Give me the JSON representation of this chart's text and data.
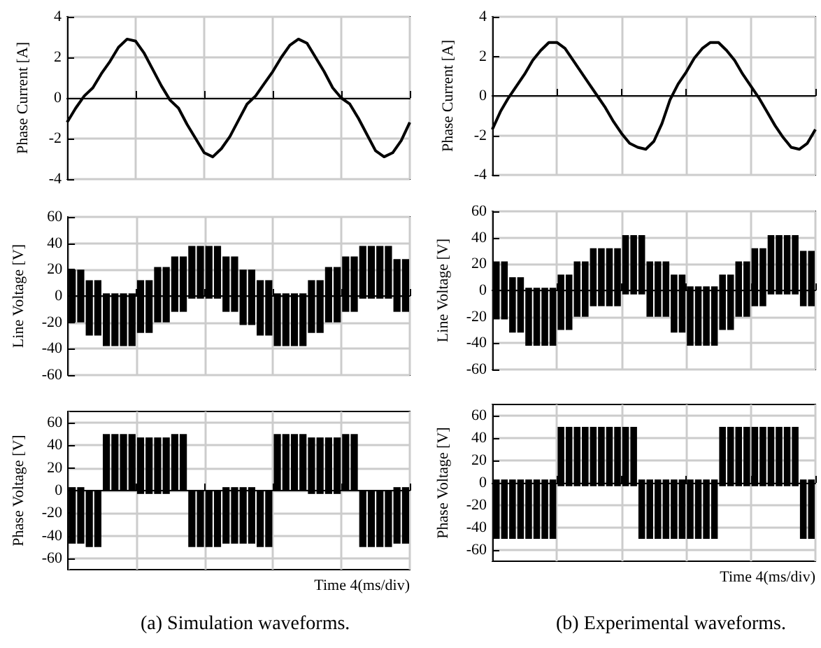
{
  "chart_data": [
    {
      "type": "line",
      "ylabel": "Phase Current [A]",
      "ylim": [
        -4,
        4
      ],
      "yticks": [
        -4,
        -2,
        0,
        2,
        4
      ],
      "grid": true,
      "tick_labels": "y",
      "categories": [
        null,
        null,
        null,
        null,
        null,
        null,
        null,
        null,
        null,
        null,
        null,
        null,
        null,
        null,
        null,
        null,
        null,
        null,
        null,
        null,
        null,
        null,
        null,
        null,
        null,
        null,
        null,
        null,
        null,
        null,
        null,
        null,
        null,
        null,
        null,
        null,
        null,
        null,
        null,
        null,
        null
      ],
      "series": [
        {
          "color": "#000000",
          "values": [
            -1.2,
            -0.5,
            0.1,
            0.5,
            1.2,
            1.8,
            2.5,
            2.9,
            2.8,
            2.2,
            1.4,
            0.6,
            -0.1,
            -0.5,
            -1.3,
            -2.0,
            -2.7,
            -2.9,
            -2.5,
            -1.9,
            -1.1,
            -0.3,
            0.1,
            0.7,
            1.3,
            2.0,
            2.6,
            2.9,
            2.7,
            2.0,
            1.3,
            0.5,
            0,
            -0.3,
            -1.0,
            -1.8,
            -2.6,
            -2.9,
            -2.7,
            -2.1,
            -1.2
          ]
        }
      ]
    },
    {
      "type": "bar",
      "ylabel": "Line Voltage [V]",
      "ylim": [
        -60,
        60
      ],
      "yticks": [
        -60,
        -40,
        -20,
        0,
        20,
        40,
        60
      ],
      "grid": true,
      "tick_labels": "y",
      "categories": [
        null,
        null,
        null,
        null,
        null,
        null,
        null,
        null,
        null,
        null,
        null,
        null,
        null,
        null,
        null,
        null,
        null,
        null,
        null,
        null,
        null,
        null,
        null,
        null,
        null,
        null,
        null,
        null,
        null,
        null,
        null,
        null,
        null,
        null,
        null,
        null,
        null,
        null,
        null,
        null
      ],
      "series": [
        {
          "color": "#000000",
          "base": [
            -20,
            -20,
            -30,
            -30,
            -38,
            -38,
            -38,
            -38,
            -28,
            -28,
            -20,
            -20,
            -12,
            -12,
            -2,
            -2,
            -2,
            -2,
            -12,
            -12,
            -22,
            -22,
            -30,
            -30,
            -38,
            -38,
            -38,
            -38,
            -28,
            -28,
            -20,
            -20,
            -12,
            -12,
            -2,
            -2,
            -2,
            -2,
            -12,
            -12
          ],
          "values": [
            40,
            40,
            42,
            42,
            40,
            40,
            40,
            40,
            40,
            40,
            42,
            42,
            42,
            42,
            40,
            40,
            40,
            40,
            42,
            42,
            42,
            42,
            42,
            42,
            40,
            40,
            40,
            40,
            40,
            40,
            42,
            42,
            42,
            42,
            40,
            40,
            40,
            40,
            40,
            40
          ]
        }
      ]
    },
    {
      "type": "bar",
      "ylabel": "Phase Voltage [V]",
      "ylim": [
        -70,
        70
      ],
      "yticks": [
        -60,
        -40,
        -20,
        0,
        20,
        40,
        60
      ],
      "grid": true,
      "tick_labels": "y",
      "annotations": [
        "Time 4(ms/div)",
        "(a) Simulation waveforms."
      ],
      "categories": [
        null,
        null,
        null,
        null,
        null,
        null,
        null,
        null,
        null,
        null,
        null,
        null,
        null,
        null,
        null,
        null,
        null,
        null,
        null,
        null,
        null,
        null,
        null,
        null,
        null,
        null,
        null,
        null,
        null,
        null,
        null,
        null,
        null,
        null,
        null,
        null,
        null,
        null,
        null,
        null
      ],
      "series": [
        {
          "color": "#000000",
          "base": [
            -47,
            -47,
            -50,
            -50,
            0,
            0,
            0,
            0,
            -3,
            -3,
            -3,
            -3,
            0,
            0,
            -50,
            -50,
            -50,
            -50,
            -47,
            -47,
            -47,
            -47,
            -50,
            -50,
            0,
            0,
            0,
            0,
            -3,
            -3,
            -3,
            -3,
            0,
            0,
            -50,
            -50,
            -50,
            -50,
            -47,
            -47
          ],
          "values": [
            50,
            50,
            50,
            50,
            50,
            50,
            50,
            50,
            50,
            50,
            50,
            50,
            50,
            50,
            50,
            50,
            50,
            50,
            50,
            50,
            50,
            50,
            50,
            50,
            50,
            50,
            50,
            50,
            50,
            50,
            50,
            50,
            50,
            50,
            50,
            50,
            50,
            50,
            50,
            50
          ]
        }
      ]
    },
    {
      "type": "line",
      "ylabel": "Phase Current [A]",
      "ylim": [
        -4,
        4
      ],
      "yticks": [
        -4,
        -2,
        0,
        2,
        4
      ],
      "grid": true,
      "tick_labels": "y",
      "categories": [
        null,
        null,
        null,
        null,
        null,
        null,
        null,
        null,
        null,
        null,
        null,
        null,
        null,
        null,
        null,
        null,
        null,
        null,
        null,
        null,
        null,
        null,
        null,
        null,
        null,
        null,
        null,
        null,
        null,
        null,
        null,
        null,
        null,
        null,
        null,
        null,
        null,
        null,
        null,
        null,
        null
      ],
      "series": [
        {
          "color": "#000000",
          "values": [
            -1.7,
            -0.8,
            -0.1,
            0.5,
            1.1,
            1.8,
            2.3,
            2.7,
            2.7,
            2.4,
            1.8,
            1.2,
            0.6,
            0,
            -0.6,
            -1.3,
            -1.9,
            -2.4,
            -2.6,
            -2.7,
            -2.3,
            -1.4,
            -0.2,
            0.6,
            1.2,
            1.9,
            2.4,
            2.7,
            2.7,
            2.3,
            1.8,
            1.1,
            0.5,
            -0.1,
            -0.8,
            -1.5,
            -2.1,
            -2.6,
            -2.7,
            -2.4,
            -1.7
          ]
        }
      ]
    },
    {
      "type": "bar",
      "ylabel": "Line Voltage [V]",
      "ylim": [
        -60,
        60
      ],
      "yticks": [
        -60,
        -40,
        -20,
        0,
        20,
        40,
        60
      ],
      "grid": true,
      "tick_labels": "y",
      "categories": [
        null,
        null,
        null,
        null,
        null,
        null,
        null,
        null,
        null,
        null,
        null,
        null,
        null,
        null,
        null,
        null,
        null,
        null,
        null,
        null,
        null,
        null,
        null,
        null,
        null,
        null,
        null,
        null,
        null,
        null,
        null,
        null,
        null,
        null,
        null,
        null,
        null,
        null,
        null,
        null
      ],
      "series": [
        {
          "color": "#000000",
          "base": [
            -22,
            -22,
            -32,
            -32,
            -42,
            -42,
            -42,
            -42,
            -30,
            -30,
            -20,
            -20,
            -12,
            -12,
            -12,
            -12,
            -3,
            -3,
            -3,
            -20,
            -20,
            -20,
            -32,
            -32,
            -42,
            -42,
            -42,
            -42,
            -30,
            -30,
            -20,
            -20,
            -12,
            -12,
            -3,
            -3,
            -3,
            -3,
            -12,
            -12
          ],
          "values": [
            44,
            44,
            42,
            42,
            44,
            44,
            44,
            44,
            42,
            42,
            42,
            42,
            44,
            44,
            44,
            44,
            45,
            45,
            45,
            42,
            42,
            42,
            44,
            44,
            45,
            45,
            45,
            45,
            42,
            42,
            42,
            42,
            44,
            44,
            45,
            45,
            45,
            45,
            42,
            42
          ]
        }
      ]
    },
    {
      "type": "bar",
      "ylabel": "Phase Voltage [V]",
      "ylim": [
        -70,
        70
      ],
      "yticks": [
        -60,
        -40,
        -20,
        0,
        20,
        40,
        60
      ],
      "grid": true,
      "tick_labels": "y",
      "annotations": [
        "Time 4(ms/div)",
        "(b) Experimental waveforms."
      ],
      "categories": [
        null,
        null,
        null,
        null,
        null,
        null,
        null,
        null,
        null,
        null,
        null,
        null,
        null,
        null,
        null,
        null,
        null,
        null,
        null,
        null,
        null,
        null,
        null,
        null,
        null,
        null,
        null,
        null,
        null,
        null,
        null,
        null,
        null,
        null,
        null,
        null,
        null,
        null,
        null,
        null
      ],
      "series": [
        {
          "color": "#000000",
          "base": [
            -50,
            -50,
            -50,
            -50,
            -50,
            -50,
            -50,
            -50,
            -3,
            -3,
            -3,
            -3,
            -3,
            -3,
            -3,
            -3,
            -3,
            -3,
            -50,
            -50,
            -50,
            -50,
            -50,
            -50,
            -50,
            -50,
            -50,
            -50,
            -3,
            -3,
            -3,
            -3,
            -3,
            -3,
            -3,
            -3,
            -3,
            -3,
            -50,
            -50
          ],
          "values": [
            53,
            53,
            53,
            53,
            53,
            53,
            53,
            53,
            53,
            53,
            53,
            53,
            53,
            53,
            53,
            53,
            53,
            53,
            53,
            53,
            53,
            53,
            53,
            53,
            53,
            53,
            53,
            53,
            53,
            53,
            53,
            53,
            53,
            53,
            53,
            53,
            53,
            53,
            53,
            53
          ]
        }
      ]
    }
  ]
}
